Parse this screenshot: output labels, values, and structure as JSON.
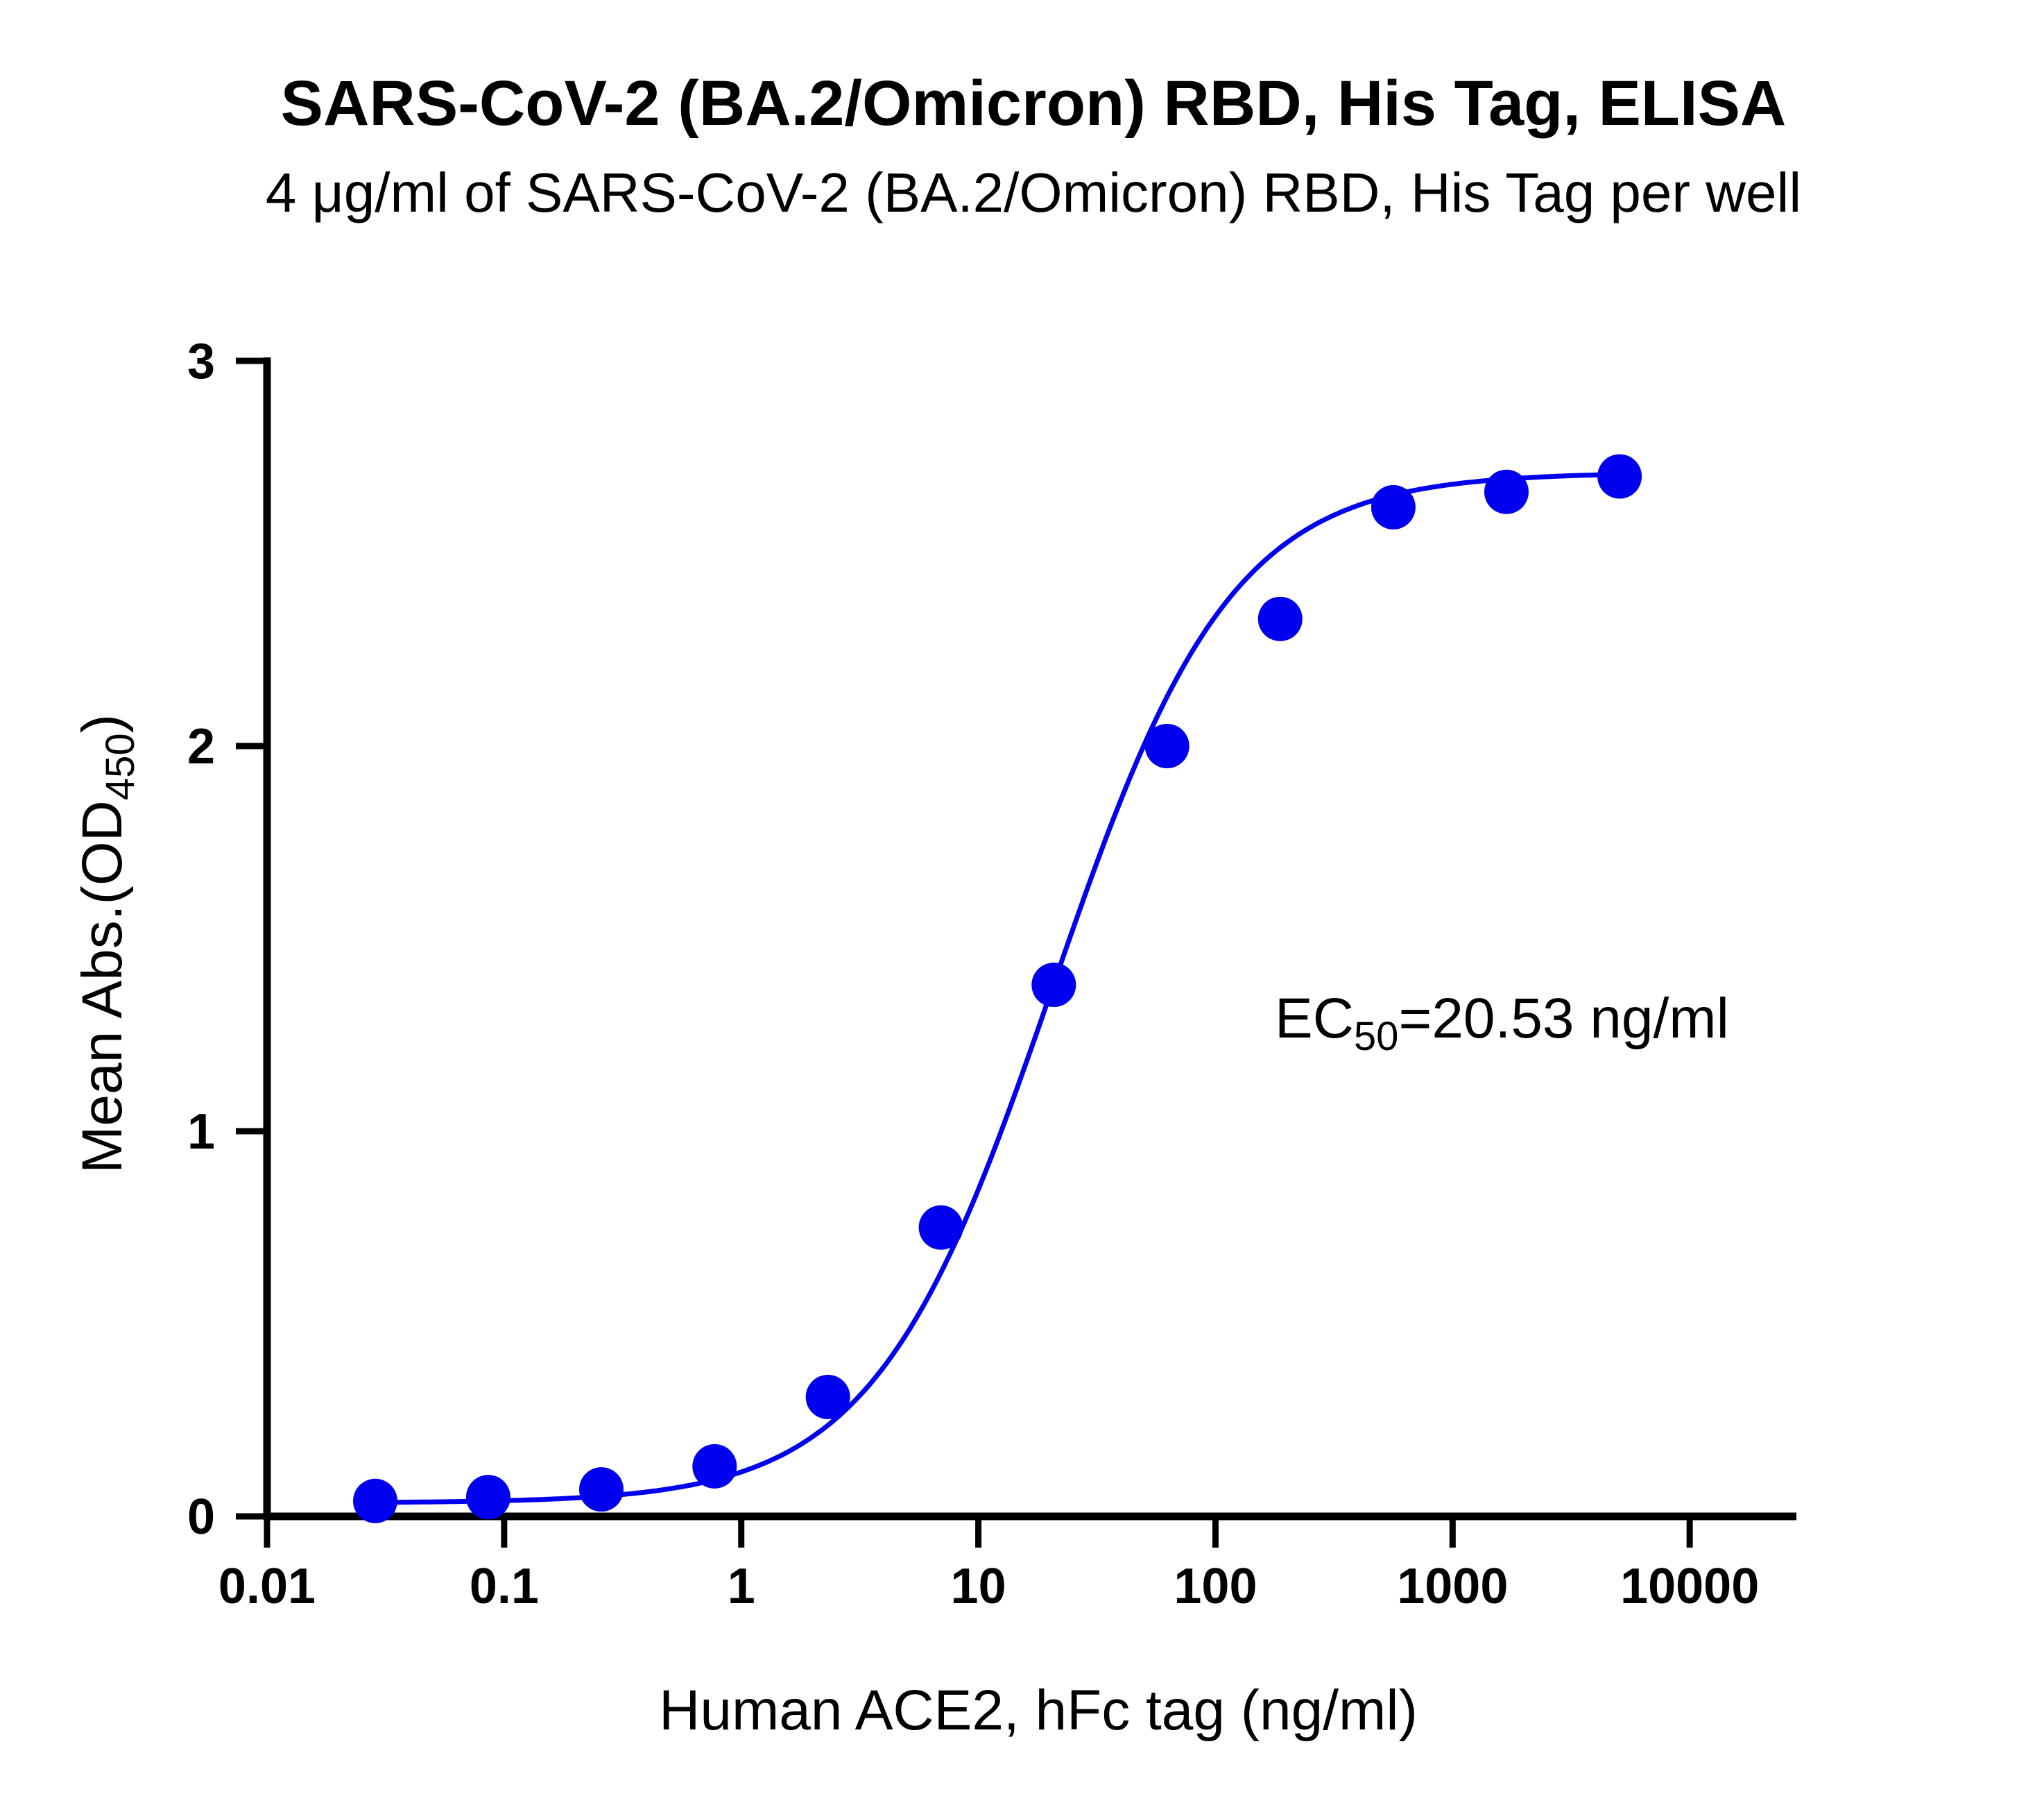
{
  "chart_data": {
    "type": "scatter",
    "title": "SARS-CoV-2 (BA.2/Omicron) RBD, His Tag, ELISA",
    "subtitle": "4 μg/ml of SARS-CoV-2 (BA.2/Omicron) RBD, His Tag per well",
    "xlabel": "Human ACE2, hFc tag (ng/ml)",
    "ylabel_main": "Mean Abs.(OD",
    "ylabel_sub": "450",
    "ylabel_close": ")",
    "x_scale": "log",
    "xlim": [
      0.01,
      100000
    ],
    "ylim": [
      0,
      3
    ],
    "x_ticks": [
      "0.01",
      "0.1",
      "1",
      "10",
      "100",
      "1000",
      "10000"
    ],
    "y_ticks": [
      "0",
      "1",
      "2",
      "3"
    ],
    "series": [
      {
        "x": [
          0.0286,
          0.0857,
          0.257,
          0.772,
          2.32,
          6.95,
          20.8,
          62.5,
          187.5,
          562.5,
          1687.5,
          5062.5
        ],
        "y": [
          0.04,
          0.05,
          0.07,
          0.13,
          0.31,
          0.75,
          1.38,
          2.0,
          2.33,
          2.62,
          2.66,
          2.7
        ],
        "fit": "4PL sigmoid"
      }
    ],
    "annotation": {
      "prefix": "EC",
      "sub": "50",
      "suffix": "=20.53 ng/ml"
    },
    "grid": false,
    "legend": "none"
  },
  "colors": {
    "series": "#0000ee",
    "axes": "#000000"
  }
}
